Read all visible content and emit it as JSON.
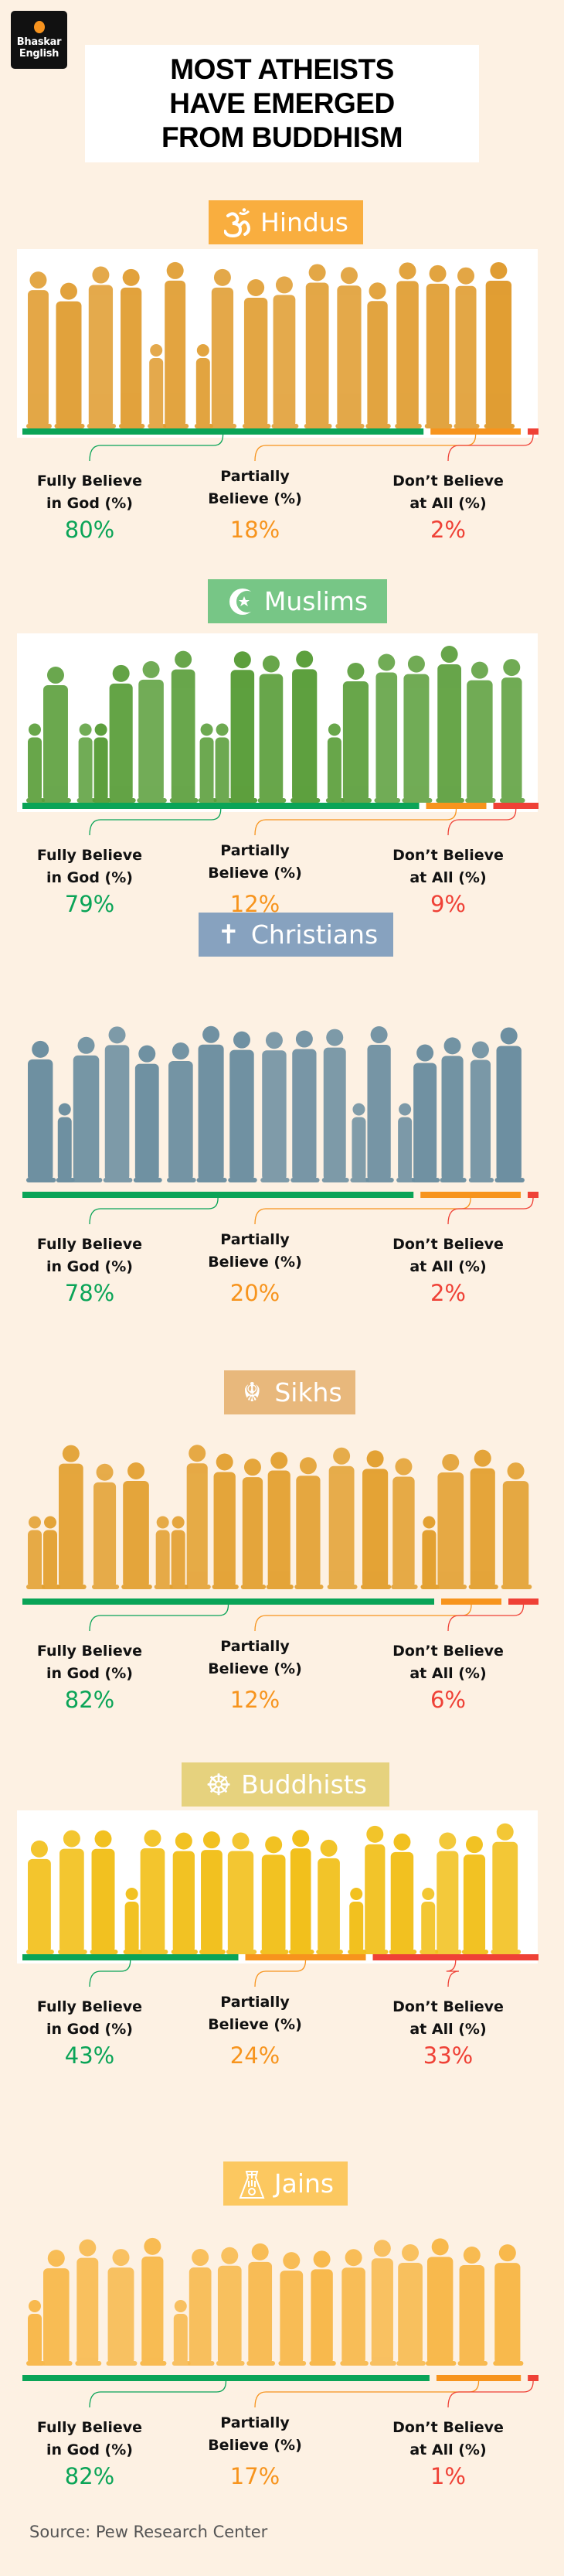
{
  "brand": {
    "line1": "Bhaskar",
    "line2": "English",
    "dot_color": "#f7931e"
  },
  "title": {
    "lines": [
      "MOST ATHEISTS",
      "HAVE EMERGED",
      "FROM BUDDHISM"
    ]
  },
  "category_colors": {
    "fully": "#0aa457",
    "partially": "#f7941d",
    "not": "#ef4136"
  },
  "labels": {
    "fully": [
      "Fully Believe",
      "in God (%)"
    ],
    "partially": [
      "Partially",
      "Believe (%)"
    ],
    "not": [
      "Don’t Believe",
      "at All (%)"
    ]
  },
  "sections": [
    {
      "name": "Hindus",
      "icon": "om-icon",
      "header_color": "#f9ae3f",
      "figure_color": "#e09c2f",
      "values": {
        "fully": "80%",
        "partially": "18%",
        "not": "2%"
      },
      "fully": 80,
      "partially": 18,
      "not": 2
    },
    {
      "name": "Muslims",
      "icon": "crescent-star-icon",
      "header_color": "#77c686",
      "figure_color": "#5a9e3a",
      "values": {
        "fully": "79%",
        "partially": "12%",
        "not": "9%"
      },
      "fully": 79,
      "partially": 12,
      "not": 9
    },
    {
      "name": "Christians",
      "icon": "cross-icon",
      "header_color": "#87a2bf",
      "figure_color": "#6b8ea0",
      "values": {
        "fully": "78%",
        "partially": "20%",
        "not": "2%"
      },
      "fully": 78,
      "partially": 20,
      "not": 2
    },
    {
      "name": "Sikhs",
      "icon": "khanda-icon",
      "header_color": "#e8b87c",
      "figure_color": "#e3a030",
      "values": {
        "fully": "82%",
        "partially": "12%",
        "not": "6%"
      },
      "fully": 82,
      "partially": 12,
      "not": 6
    },
    {
      "name": "Buddhists",
      "icon": "dharma-wheel-icon",
      "header_color": "#e6d27e",
      "figure_color": "#f2c01a",
      "values": {
        "fully": "43%",
        "partially": "24%",
        "not": "33%"
      },
      "fully": 43,
      "partially": 24,
      "not": 33
    },
    {
      "name": "Jains",
      "icon": "jain-hand-icon",
      "header_color": "#fcc860",
      "figure_color": "#f8b94c",
      "values": {
        "fully": "82%",
        "partially": "17%",
        "not": "1%"
      },
      "fully": 82,
      "partially": 17,
      "not": 1
    }
  ],
  "source": "Source: Pew Research Center"
}
